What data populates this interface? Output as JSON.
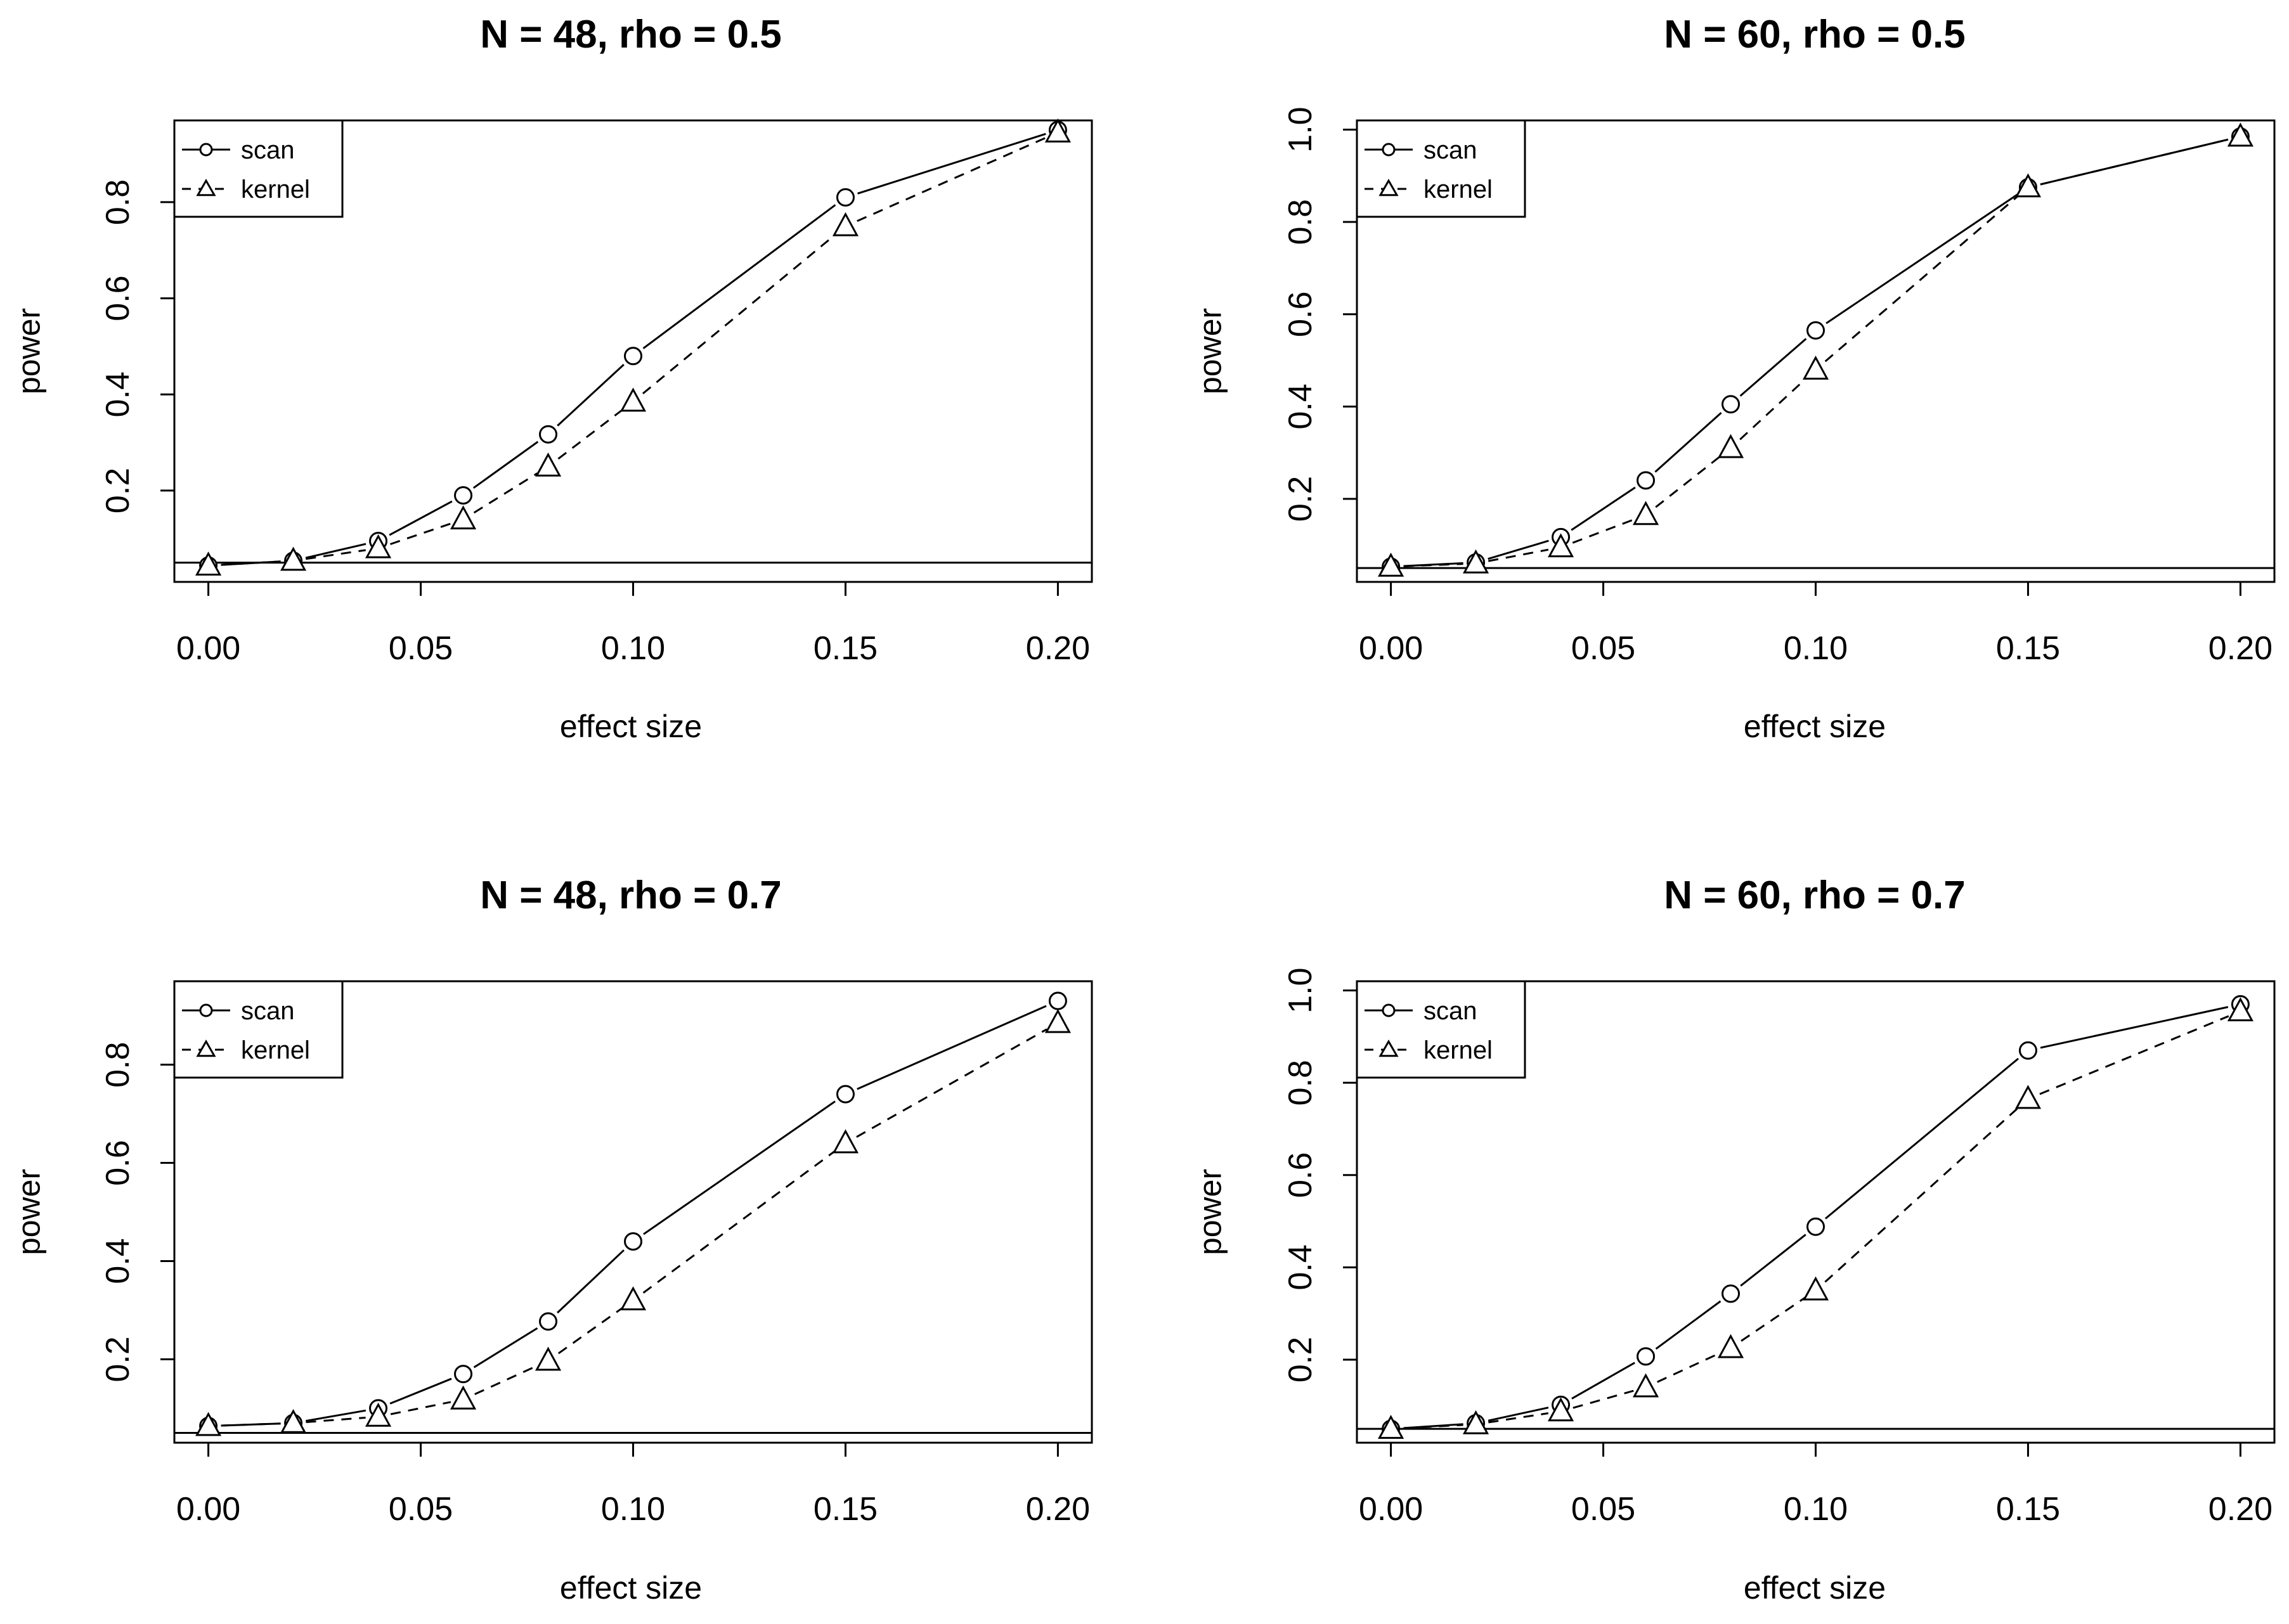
{
  "chart_data": [
    {
      "type": "line",
      "title": "N = 48, rho = 0.5",
      "xlabel": "effect size",
      "ylabel": "power",
      "x": [
        0.0,
        0.02,
        0.04,
        0.06,
        0.08,
        0.1,
        0.15,
        0.2
      ],
      "xlim": [
        -0.008,
        0.208
      ],
      "ylim": [
        0.01,
        0.97
      ],
      "xticks": [
        "0.00",
        "0.05",
        "0.10",
        "0.15",
        "0.20"
      ],
      "yticks": [
        "0.2",
        "0.4",
        "0.6",
        "0.8"
      ],
      "reference_line": 0.05,
      "legend_position": "top-left",
      "series": [
        {
          "name": "scan",
          "marker": "circle",
          "line": "solid",
          "values": [
            0.044,
            0.054,
            0.095,
            0.19,
            0.317,
            0.48,
            0.81,
            0.95
          ]
        },
        {
          "name": "kernel",
          "marker": "triangle",
          "line": "dashed",
          "values": [
            0.044,
            0.054,
            0.08,
            0.14,
            0.25,
            0.385,
            0.75,
            0.945
          ]
        }
      ]
    },
    {
      "type": "line",
      "title": "N = 60, rho = 0.5",
      "xlabel": "effect size",
      "ylabel": "power",
      "x": [
        0.0,
        0.02,
        0.04,
        0.06,
        0.08,
        0.1,
        0.15,
        0.2
      ],
      "xlim": [
        -0.008,
        0.208
      ],
      "ylim": [
        0.02,
        1.02
      ],
      "xticks": [
        "0.00",
        "0.05",
        "0.10",
        "0.15",
        "0.20"
      ],
      "yticks": [
        "0.2",
        "0.4",
        "0.6",
        "0.8",
        "1.0"
      ],
      "reference_line": 0.05,
      "legend_position": "top-left",
      "series": [
        {
          "name": "scan",
          "marker": "circle",
          "line": "solid",
          "values": [
            0.053,
            0.062,
            0.117,
            0.24,
            0.405,
            0.565,
            0.875,
            0.985
          ]
        },
        {
          "name": "kernel",
          "marker": "triangle",
          "line": "dashed",
          "values": [
            0.053,
            0.06,
            0.095,
            0.165,
            0.31,
            0.48,
            0.875,
            0.985
          ]
        }
      ]
    },
    {
      "type": "line",
      "title": "N = 48, rho = 0.7",
      "xlabel": "effect size",
      "ylabel": "power",
      "x": [
        0.0,
        0.02,
        0.04,
        0.06,
        0.08,
        0.1,
        0.15,
        0.2
      ],
      "xlim": [
        -0.008,
        0.208
      ],
      "ylim": [
        0.03,
        0.97
      ],
      "xticks": [
        "0.00",
        "0.05",
        "0.10",
        "0.15",
        "0.20"
      ],
      "yticks": [
        "0.2",
        "0.4",
        "0.6",
        "0.8"
      ],
      "reference_line": 0.05,
      "legend_position": "top-left",
      "series": [
        {
          "name": "scan",
          "marker": "circle",
          "line": "solid",
          "values": [
            0.064,
            0.07,
            0.1,
            0.17,
            0.277,
            0.44,
            0.74,
            0.93
          ]
        },
        {
          "name": "kernel",
          "marker": "triangle",
          "line": "dashed",
          "values": [
            0.064,
            0.07,
            0.083,
            0.118,
            0.197,
            0.32,
            0.64,
            0.885
          ]
        }
      ]
    },
    {
      "type": "line",
      "title": "N = 60, rho = 0.7",
      "xlabel": "effect size",
      "ylabel": "power",
      "x": [
        0.0,
        0.02,
        0.04,
        0.06,
        0.08,
        0.1,
        0.15,
        0.2
      ],
      "xlim": [
        -0.008,
        0.208
      ],
      "ylim": [
        0.02,
        1.02
      ],
      "xticks": [
        "0.00",
        "0.05",
        "0.10",
        "0.15",
        "0.20"
      ],
      "yticks": [
        "0.2",
        "0.4",
        "0.6",
        "0.8",
        "1.0"
      ],
      "reference_line": 0.05,
      "legend_position": "top-left",
      "series": [
        {
          "name": "scan",
          "marker": "circle",
          "line": "solid",
          "values": [
            0.05,
            0.062,
            0.102,
            0.207,
            0.343,
            0.488,
            0.87,
            0.97
          ]
        },
        {
          "name": "kernel",
          "marker": "triangle",
          "line": "dashed",
          "values": [
            0.05,
            0.06,
            0.088,
            0.14,
            0.225,
            0.35,
            0.765,
            0.955
          ]
        }
      ]
    }
  ]
}
